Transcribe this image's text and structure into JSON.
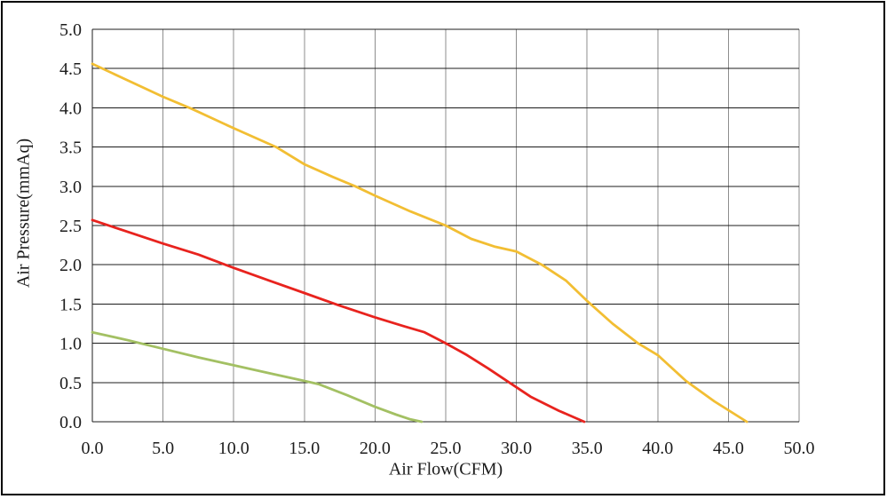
{
  "chart_data": {
    "type": "line",
    "title": "",
    "xlabel": "Air Flow(CFM)",
    "ylabel": "Air Pressure(mmAq)",
    "xlim": [
      0,
      50
    ],
    "ylim": [
      0,
      5
    ],
    "grid": "on",
    "legend": "none",
    "x_ticks": {
      "values": [
        0,
        5,
        10,
        15,
        20,
        25,
        30,
        35,
        40,
        45,
        50
      ],
      "labels": [
        "0.0",
        "5.0",
        "10.0",
        "15.0",
        "20.0",
        "25.0",
        "30.0",
        "35.0",
        "40.0",
        "45.0",
        "50.0"
      ]
    },
    "y_ticks": {
      "values": [
        0,
        0.5,
        1,
        1.5,
        2,
        2.5,
        3,
        3.5,
        4,
        4.5,
        5
      ],
      "labels": [
        "0.0",
        "0.5",
        "1.0",
        "1.5",
        "2.0",
        "2.5",
        "3.0",
        "3.5",
        "4.0",
        "4.5",
        "5.0"
      ]
    },
    "colors": {
      "grid_horizontal": "#1c1c1c",
      "grid_vertical": "#8e8e8e",
      "axis": "#1c1c1c",
      "text": "#1c1c1c",
      "frame": "#000000",
      "background": "#ffffff"
    },
    "series": [
      {
        "name": "yellow-curve",
        "color": "#F2BE33",
        "points": [
          [
            0,
            4.56
          ],
          [
            2.5,
            4.35
          ],
          [
            5,
            4.14
          ],
          [
            7,
            3.99
          ],
          [
            10,
            3.74
          ],
          [
            13,
            3.5
          ],
          [
            15,
            3.28
          ],
          [
            17,
            3.12
          ],
          [
            18.6,
            3.0
          ],
          [
            20,
            2.88
          ],
          [
            22.5,
            2.68
          ],
          [
            25,
            2.5
          ],
          [
            26.8,
            2.33
          ],
          [
            28.5,
            2.23
          ],
          [
            30,
            2.17
          ],
          [
            31.8,
            2.0
          ],
          [
            33.5,
            1.8
          ],
          [
            35,
            1.54
          ],
          [
            36.8,
            1.25
          ],
          [
            38.6,
            1.0
          ],
          [
            40,
            0.85
          ],
          [
            42,
            0.52
          ],
          [
            44,
            0.26
          ],
          [
            46.3,
            0.0
          ]
        ]
      },
      {
        "name": "red-curve",
        "color": "#E8231E",
        "points": [
          [
            0,
            2.57
          ],
          [
            2.5,
            2.42
          ],
          [
            5,
            2.27
          ],
          [
            7.5,
            2.13
          ],
          [
            10,
            1.96
          ],
          [
            12.5,
            1.8
          ],
          [
            15,
            1.64
          ],
          [
            17.5,
            1.48
          ],
          [
            20,
            1.33
          ],
          [
            22,
            1.22
          ],
          [
            23.5,
            1.14
          ],
          [
            25,
            1.0
          ],
          [
            26.5,
            0.85
          ],
          [
            28,
            0.68
          ],
          [
            29.5,
            0.5
          ],
          [
            31,
            0.32
          ],
          [
            33,
            0.14
          ],
          [
            34.8,
            0.0
          ]
        ]
      },
      {
        "name": "green-curve",
        "color": "#A3C063",
        "points": [
          [
            0,
            1.14
          ],
          [
            2.5,
            1.04
          ],
          [
            5,
            0.93
          ],
          [
            7.5,
            0.82
          ],
          [
            10,
            0.72
          ],
          [
            12.5,
            0.62
          ],
          [
            15,
            0.52
          ],
          [
            16,
            0.48
          ],
          [
            18,
            0.34
          ],
          [
            20,
            0.19
          ],
          [
            21.5,
            0.09
          ],
          [
            22.5,
            0.03
          ],
          [
            23.3,
            0.0
          ]
        ]
      }
    ]
  }
}
